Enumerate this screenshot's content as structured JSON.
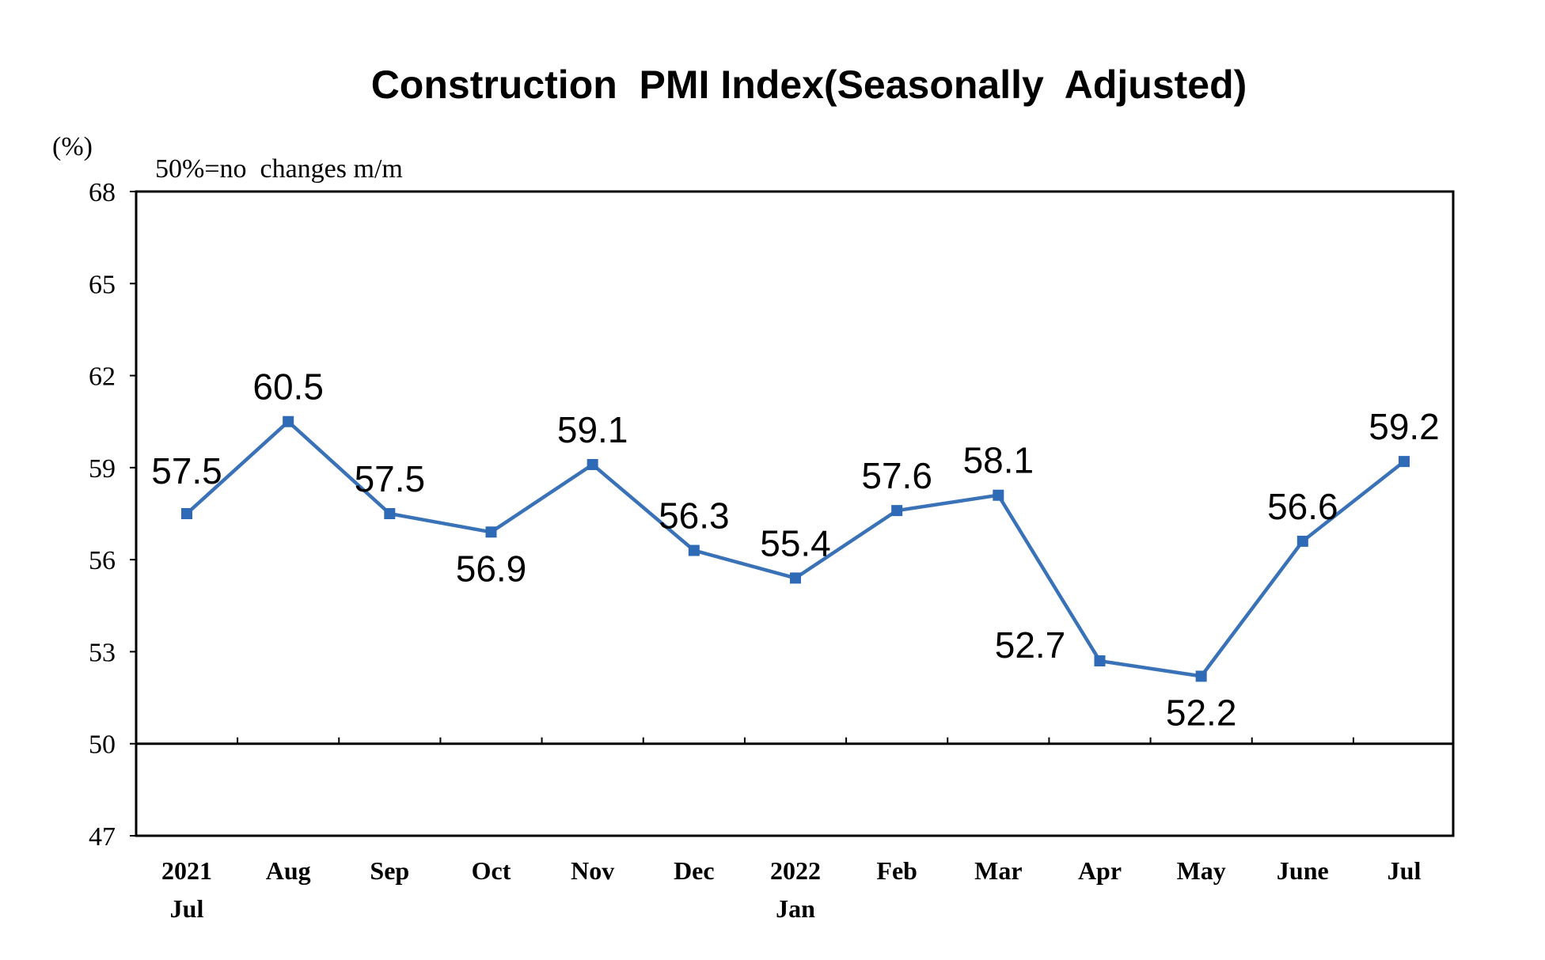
{
  "chart_data": {
    "type": "line",
    "title": "Construction  PMI Index(Seasonally  Adjusted)",
    "unit_label": "(%)",
    "note": "50%=no  changes m/m",
    "x": [
      [
        "2021",
        "Jul"
      ],
      [
        "Aug"
      ],
      [
        "Sep"
      ],
      [
        "Oct"
      ],
      [
        "Nov"
      ],
      [
        "Dec"
      ],
      [
        "2022",
        "Jan"
      ],
      [
        "Feb"
      ],
      [
        "Mar"
      ],
      [
        "Apr"
      ],
      [
        "May"
      ],
      [
        "June"
      ],
      [
        "Jul"
      ]
    ],
    "series": [
      {
        "values": [
          57.5,
          60.5,
          57.5,
          56.9,
          59.1,
          56.3,
          55.4,
          57.6,
          58.1,
          52.7,
          52.2,
          56.6,
          59.2
        ],
        "labels": [
          "57.5",
          "60.5",
          "57.5",
          "56.9",
          "59.1",
          "56.3",
          "55.4",
          "57.6",
          "58.1",
          "52.7",
          "52.2",
          "56.6",
          "59.2"
        ],
        "label_positions": [
          "left",
          "above",
          "above",
          "below",
          "above",
          "above",
          "above",
          "above",
          "above",
          "left",
          "below",
          "above",
          "above"
        ]
      }
    ],
    "ylim": [
      47,
      68
    ],
    "yticks": [
      "68",
      "65",
      "62",
      "59",
      "56",
      "53",
      "50",
      "47"
    ],
    "ytick_values": [
      68,
      65,
      62,
      59,
      56,
      53,
      50,
      47
    ],
    "reference_line": 50,
    "grid": false,
    "line_color": "#3a72b8",
    "marker_color": "#2e6ab6",
    "marker": "square"
  }
}
